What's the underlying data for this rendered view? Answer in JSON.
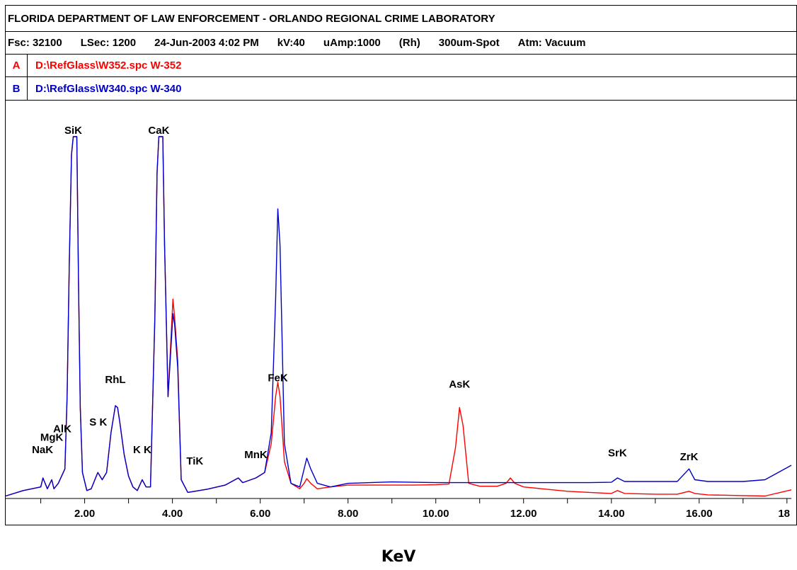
{
  "header": {
    "title": "FLORIDA DEPARTMENT OF LAW ENFORCEMENT - ORLANDO REGIONAL CRIME LABORATORY",
    "params": [
      "Fsc: 32100",
      "LSec: 1200",
      "24-Jun-2003  4:02 PM",
      "kV:40",
      "uAmp:1000",
      "(Rh)",
      "300um-Spot",
      "Atm: Vacuum"
    ]
  },
  "spectra": [
    {
      "slot": "A",
      "file": "D:\\RefGlass\\W352.spc  W-352",
      "color": "#ff0000"
    },
    {
      "slot": "B",
      "file": "D:\\RefGlass\\W340.spc  W-340",
      "color": "#0000cc"
    }
  ],
  "chart_data": {
    "type": "line",
    "xlabel": "KeV",
    "ylabel": "",
    "xlim": [
      0.2,
      18.1
    ],
    "ylim": [
      0,
      100
    ],
    "x_ticks": [
      "2.00",
      "4.00",
      "6.00",
      "8.00",
      "10.00",
      "12.00",
      "14.00",
      "16.00",
      "18"
    ],
    "grid": false,
    "peak_labels": [
      {
        "label": "NaK",
        "x": 1.04,
        "y": 11.6
      },
      {
        "label": "MgK",
        "x": 1.25,
        "y": 15.0
      },
      {
        "label": "AlK",
        "x": 1.49,
        "y": 17.4
      },
      {
        "label": "SiK",
        "x": 1.74,
        "y": 102
      },
      {
        "label": "S K",
        "x": 2.31,
        "y": 19.2
      },
      {
        "label": "RhL",
        "x": 2.7,
        "y": 31.0
      },
      {
        "label": "K K",
        "x": 3.31,
        "y": 11.6
      },
      {
        "label": "CaK",
        "x": 3.69,
        "y": 102
      },
      {
        "label": "TiK",
        "x": 4.51,
        "y": 8.4
      },
      {
        "label": "MnK",
        "x": 5.9,
        "y": 10.2
      },
      {
        "label": "FeK",
        "x": 6.4,
        "y": 31.5
      },
      {
        "label": "AsK",
        "x": 10.54,
        "y": 29.7
      },
      {
        "label": "SrK",
        "x": 14.14,
        "y": 10.7
      },
      {
        "label": "ZrK",
        "x": 15.77,
        "y": 9.6
      }
    ],
    "series": [
      {
        "name": "A",
        "color": "#ff0000",
        "x": [
          0.2,
          0.6,
          1.0,
          1.05,
          1.15,
          1.25,
          1.3,
          1.4,
          1.55,
          1.6,
          1.65,
          1.7,
          1.74,
          1.82,
          1.86,
          1.9,
          1.95,
          2.05,
          2.15,
          2.3,
          2.4,
          2.5,
          2.6,
          2.7,
          2.75,
          2.8,
          2.9,
          3.0,
          3.1,
          3.2,
          3.31,
          3.4,
          3.5,
          3.6,
          3.65,
          3.69,
          3.78,
          3.82,
          3.9,
          3.95,
          4.01,
          4.05,
          4.12,
          4.2,
          4.35,
          4.51,
          4.8,
          5.2,
          5.5,
          5.6,
          5.9,
          6.1,
          6.25,
          6.35,
          6.4,
          6.45,
          6.55,
          6.7,
          6.9,
          7.0,
          7.06,
          7.15,
          7.3,
          7.6,
          8.0,
          8.5,
          9.0,
          9.5,
          10.0,
          10.3,
          10.45,
          10.54,
          10.62,
          10.75,
          11.0,
          11.4,
          11.6,
          11.7,
          11.8,
          12.0,
          13.0,
          13.5,
          14.0,
          14.14,
          14.3,
          15.0,
          15.5,
          15.77,
          15.9,
          16.2,
          17.0,
          17.5,
          18.1
        ],
        "y": [
          0.5,
          2.0,
          3.0,
          5.5,
          2.5,
          5.0,
          2.5,
          4.0,
          8.0,
          28.0,
          65.0,
          95.0,
          102.0,
          102.0,
          60.0,
          25.0,
          7.0,
          2.0,
          2.5,
          7.0,
          5.0,
          7.0,
          18.0,
          25.5,
          25.0,
          21.0,
          12.0,
          6.0,
          3.0,
          2.0,
          5.0,
          3.0,
          3.0,
          50.0,
          90.0,
          102.0,
          102.0,
          70.0,
          28.0,
          40.0,
          55.0,
          50.0,
          38.0,
          5.0,
          1.5,
          1.8,
          2.4,
          3.5,
          5.5,
          4.2,
          5.5,
          7.0,
          15.0,
          28.0,
          32.0,
          28.0,
          10.0,
          4.0,
          2.5,
          4.0,
          5.3,
          4.0,
          2.5,
          3.0,
          3.5,
          3.5,
          3.5,
          3.5,
          3.6,
          3.8,
          14.0,
          25.0,
          20.0,
          4.0,
          3.2,
          3.2,
          4.0,
          5.5,
          4.0,
          3.0,
          1.8,
          1.5,
          1.2,
          2.0,
          1.2,
          1.0,
          1.0,
          1.8,
          1.2,
          0.8,
          0.6,
          0.5,
          2.2
        ]
      },
      {
        "name": "B",
        "color": "#0000cc",
        "x": [
          0.2,
          0.6,
          1.0,
          1.05,
          1.15,
          1.25,
          1.3,
          1.4,
          1.55,
          1.6,
          1.65,
          1.7,
          1.74,
          1.82,
          1.86,
          1.9,
          1.95,
          2.05,
          2.15,
          2.3,
          2.4,
          2.5,
          2.6,
          2.7,
          2.75,
          2.8,
          2.9,
          3.0,
          3.1,
          3.2,
          3.31,
          3.4,
          3.5,
          3.6,
          3.65,
          3.69,
          3.78,
          3.82,
          3.9,
          3.95,
          4.01,
          4.05,
          4.12,
          4.2,
          4.35,
          4.51,
          4.8,
          5.2,
          5.5,
          5.6,
          5.9,
          6.1,
          6.25,
          6.35,
          6.4,
          6.45,
          6.55,
          6.7,
          6.9,
          7.0,
          7.06,
          7.15,
          7.3,
          7.6,
          8.0,
          8.5,
          9.0,
          9.5,
          10.0,
          10.3,
          10.45,
          10.54,
          10.62,
          10.75,
          11.0,
          11.4,
          11.6,
          11.7,
          11.8,
          12.0,
          13.0,
          13.5,
          14.0,
          14.14,
          14.3,
          15.0,
          15.5,
          15.77,
          15.9,
          16.2,
          17.0,
          17.5,
          18.1
        ],
        "y": [
          0.5,
          2.0,
          3.0,
          5.5,
          2.5,
          5.0,
          2.5,
          4.0,
          8.0,
          28.0,
          65.0,
          95.0,
          102.0,
          102.0,
          60.0,
          25.0,
          7.0,
          2.0,
          2.5,
          7.0,
          5.0,
          7.0,
          18.0,
          25.5,
          25.0,
          21.0,
          12.0,
          6.0,
          3.0,
          2.0,
          5.0,
          3.0,
          3.0,
          50.0,
          90.0,
          102.0,
          102.0,
          70.0,
          28.0,
          38.0,
          51.0,
          48.0,
          36.0,
          5.0,
          1.5,
          1.8,
          2.4,
          3.5,
          5.5,
          4.2,
          5.5,
          7.0,
          18.0,
          55.0,
          80.0,
          70.0,
          15.0,
          4.0,
          3.0,
          8.0,
          11.0,
          8.0,
          4.0,
          3.0,
          4.0,
          4.2,
          4.4,
          4.3,
          4.2,
          4.2,
          4.2,
          4.2,
          4.2,
          4.2,
          4.2,
          4.2,
          4.2,
          4.2,
          4.2,
          4.2,
          4.2,
          4.2,
          4.3,
          5.5,
          4.5,
          4.5,
          4.5,
          8.0,
          5.0,
          4.5,
          4.5,
          5.0,
          9.0
        ]
      }
    ]
  }
}
